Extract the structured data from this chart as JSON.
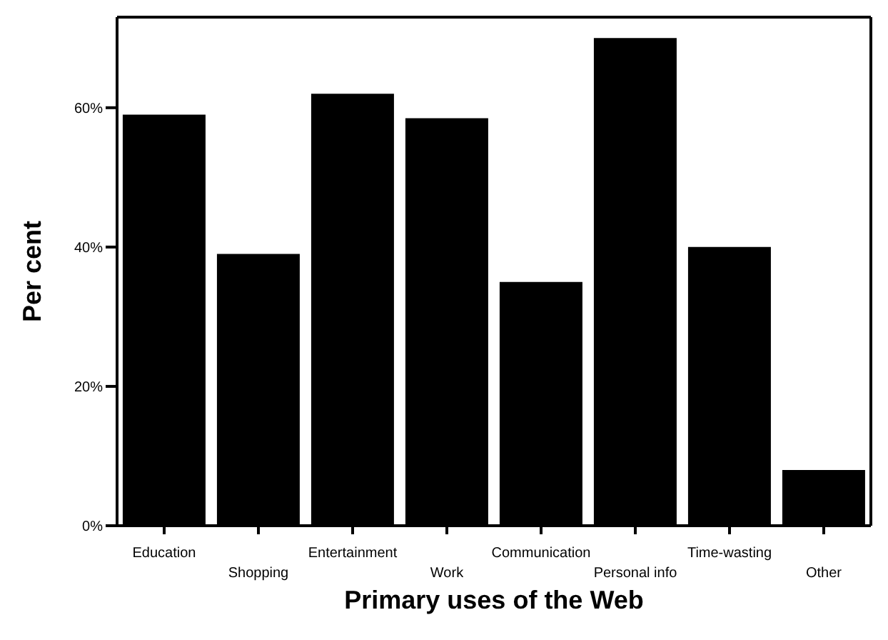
{
  "chart_data": {
    "type": "bar",
    "xlabel": "Primary uses of the Web",
    "ylabel": "Per cent",
    "categories": [
      "Education",
      "Shopping",
      "Entertainment",
      "Work",
      "Communication",
      "Personal info",
      "Time-wasting",
      "Other"
    ],
    "values": [
      59,
      39,
      62,
      58.5,
      35,
      70,
      40,
      8
    ],
    "color": "#000000",
    "ylim": [
      0,
      73
    ],
    "yticks": [
      {
        "value": 0,
        "label": "0%"
      },
      {
        "value": 20,
        "label": "20%"
      },
      {
        "value": 40,
        "label": "40%"
      },
      {
        "value": 60,
        "label": "60%"
      }
    ],
    "grid": false
  }
}
